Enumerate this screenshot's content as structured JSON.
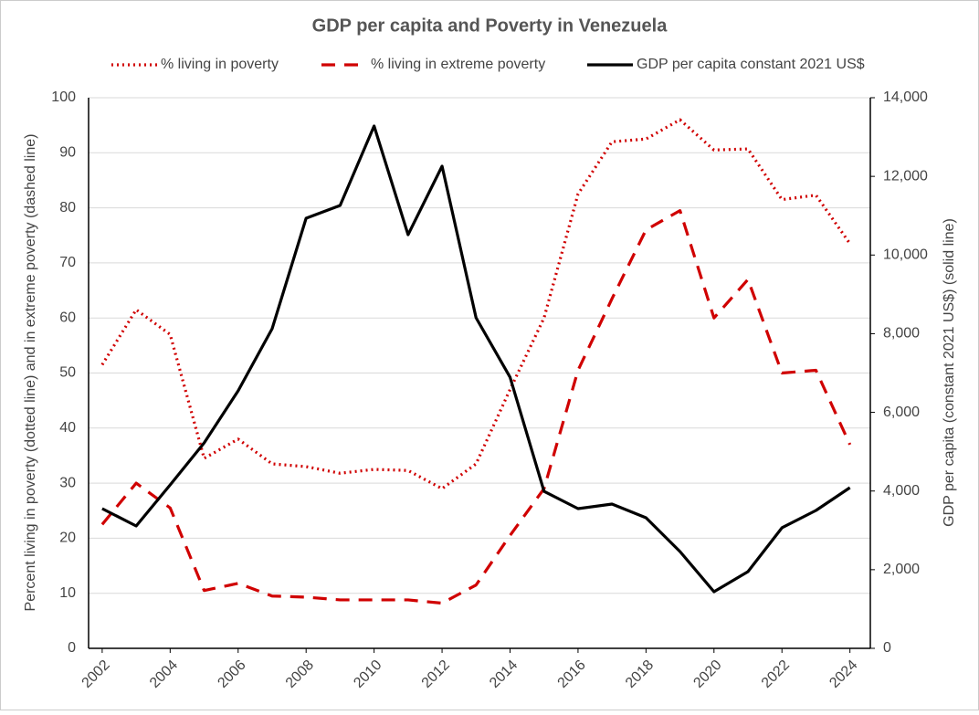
{
  "chart_data": {
    "type": "line",
    "title": "GDP per capita and Poverty in Venezuela",
    "y_label": "Percent living in poverty (dotted line) and in extreme poverty (dashed line)",
    "y2_label": "GDP per capita (constant 2021 US$) (solid line)",
    "x": [
      2002,
      2003,
      2004,
      2005,
      2006,
      2007,
      2008,
      2009,
      2010,
      2011,
      2012,
      2013,
      2014,
      2015,
      2016,
      2017,
      2018,
      2019,
      2020,
      2021,
      2022,
      2023,
      2024
    ],
    "xlim": [
      2001.6,
      2024.6
    ],
    "xticks": [
      2002,
      2004,
      2006,
      2008,
      2010,
      2012,
      2014,
      2016,
      2018,
      2020,
      2022,
      2024
    ],
    "ylim": [
      0,
      100
    ],
    "yticks": [
      0,
      10,
      20,
      30,
      40,
      50,
      60,
      70,
      80,
      90,
      100
    ],
    "y2lim": [
      0,
      14000
    ],
    "y2ticks": [
      0,
      {
        "value": 2000,
        "label": "2,000"
      },
      {
        "value": 4000,
        "label": "4,000"
      },
      {
        "value": 6000,
        "label": "6,000"
      },
      {
        "value": 8000,
        "label": "8,000"
      },
      {
        "value": 10000,
        "label": "10,000"
      },
      {
        "value": 12000,
        "label": "12,000"
      },
      {
        "value": 14000,
        "label": "14,000"
      }
    ],
    "grid": true,
    "legend": "top",
    "series": [
      {
        "name": "% living in poverty",
        "color": "#d00000",
        "style": "dotted",
        "values": [
          51.5,
          61.5,
          57,
          34.5,
          38,
          33.5,
          33,
          31.8,
          32.5,
          32.3,
          29,
          33.5,
          47,
          60,
          82.5,
          92,
          92.5,
          96,
          90.5,
          90.7,
          81.5,
          82.3,
          73.5
        ]
      },
      {
        "name": "% living in extreme poverty",
        "color": "#d00000",
        "style": "dashed",
        "values": [
          22.5,
          30,
          25.5,
          10.5,
          11.8,
          9.5,
          9.3,
          8.8,
          8.8,
          8.8,
          8.2,
          11.5,
          20.5,
          29,
          50.5,
          63.5,
          76,
          79.5,
          60,
          67,
          50,
          50.5,
          37
        ]
      },
      {
        "name": "GDP per capita constant 2021 US$",
        "color": "#000000",
        "style": "solid",
        "axis": "y2",
        "values": [
          3552,
          3111,
          4156,
          5224,
          6547,
          8126,
          10935,
          11260,
          13280,
          10517,
          12259,
          8405,
          6895,
          3993,
          3552,
          3668,
          3320,
          2461,
          1440,
          1950,
          3065,
          3506,
          4086
        ]
      }
    ]
  }
}
